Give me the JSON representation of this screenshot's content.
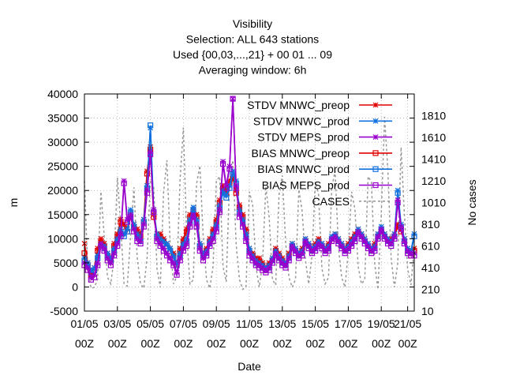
{
  "chart_data": {
    "type": "line",
    "title_lines": [
      "Visibility",
      "Selection: ALL    643 stations",
      "Used {00,03,...,21} + 00 01 ... 09",
      "Averaging window:  6h"
    ],
    "xlabel": "Date",
    "ylabel": "m",
    "y2label": "No cases",
    "ylim": [
      -5000,
      40000
    ],
    "y2lim": [
      10,
      2010
    ],
    "yticks": [
      -5000,
      0,
      5000,
      10000,
      15000,
      20000,
      25000,
      30000,
      35000,
      40000
    ],
    "y2ticks": [
      10,
      210,
      410,
      610,
      810,
      1010,
      1210,
      1410,
      1610,
      1810
    ],
    "xlim": [
      0,
      100
    ],
    "xticks": [
      {
        "pos": 0,
        "l1": "01/05",
        "l2": "00Z"
      },
      {
        "pos": 10,
        "l1": "03/05",
        "l2": "00Z"
      },
      {
        "pos": 20,
        "l1": "05/05",
        "l2": "00Z"
      },
      {
        "pos": 30,
        "l1": "07/05",
        "l2": "00Z"
      },
      {
        "pos": 40,
        "l1": "09/05",
        "l2": "00Z"
      },
      {
        "pos": 50,
        "l1": "11/05",
        "l2": "00Z"
      },
      {
        "pos": 60,
        "l1": "13/05",
        "l2": "00Z"
      },
      {
        "pos": 70,
        "l1": "15/05",
        "l2": "00Z"
      },
      {
        "pos": 80,
        "l1": "17/05",
        "l2": "00Z"
      },
      {
        "pos": 90,
        "l1": "19/05",
        "l2": "00Z"
      },
      {
        "pos": 98,
        "l1": "21/05",
        "l2": "00Z"
      }
    ],
    "legend_position": "top-right",
    "grid": true,
    "x": [
      0,
      1,
      2,
      3,
      4,
      5,
      6,
      7,
      8,
      9,
      10,
      11,
      12,
      13,
      14,
      15,
      16,
      17,
      18,
      19,
      20,
      21,
      22,
      23,
      24,
      25,
      26,
      27,
      28,
      29,
      30,
      31,
      32,
      33,
      34,
      35,
      36,
      37,
      38,
      39,
      40,
      41,
      42,
      43,
      44,
      45,
      46,
      47,
      48,
      49,
      50,
      51,
      52,
      53,
      54,
      55,
      56,
      57,
      58,
      59,
      60,
      61,
      62,
      63,
      64,
      65,
      66,
      67,
      68,
      69,
      70,
      71,
      72,
      73,
      74,
      75,
      76,
      77,
      78,
      79,
      80,
      81,
      82,
      83,
      84,
      85,
      86,
      87,
      88,
      89,
      90,
      91,
      92,
      93,
      94,
      95,
      96,
      97,
      98,
      99,
      100
    ],
    "series": [
      {
        "name": "STDV MNWC_preop",
        "color": "#e00000",
        "marker": "x",
        "values": [
          9000,
          5000,
          3000,
          4000,
          8000,
          10000,
          9000,
          7000,
          6000,
          9000,
          11000,
          14000,
          13000,
          12000,
          15000,
          13000,
          12000,
          11000,
          14000,
          24000,
          29000,
          15000,
          11000,
          11000,
          10000,
          9000,
          8000,
          7000,
          5000,
          8000,
          10000,
          12000,
          15000,
          16000,
          15000,
          9000,
          7000,
          8000,
          10000,
          12000,
          14000,
          18000,
          21000,
          20000,
          22000,
          23000,
          20000,
          17000,
          15000,
          12000,
          8000,
          7000,
          6000,
          6000,
          5000,
          4000,
          5000,
          6000,
          8000,
          7000,
          6000,
          5000,
          7000,
          9000,
          8000,
          7000,
          8000,
          10000,
          9000,
          8000,
          9000,
          10000,
          9000,
          8000,
          9000,
          10000,
          11000,
          10000,
          9000,
          8000,
          9000,
          10000,
          11000,
          12000,
          11000,
          10000,
          9000,
          8000,
          9000,
          11000,
          12000,
          11000,
          10000,
          10000,
          11000,
          13000,
          12000,
          10000,
          8000,
          7000,
          8000
        ]
      },
      {
        "name": "STDV MNWC_prod",
        "color": "#1070e0",
        "marker": "x",
        "values": [
          6000,
          5000,
          3500,
          4000,
          6500,
          9000,
          8500,
          7000,
          6000,
          8000,
          10000,
          12000,
          11000,
          12000,
          16000,
          13000,
          11000,
          10000,
          14000,
          21000,
          33000,
          16000,
          11000,
          10000,
          9500,
          9000,
          8000,
          6500,
          5000,
          7000,
          9000,
          10000,
          14000,
          16500,
          14000,
          9000,
          7000,
          7500,
          9500,
          11000,
          13000,
          17000,
          20000,
          19000,
          21000,
          24000,
          22000,
          16000,
          14000,
          11000,
          8000,
          6500,
          5500,
          5000,
          4500,
          4000,
          4500,
          6000,
          7500,
          6500,
          5500,
          5000,
          6500,
          9000,
          8000,
          7000,
          7500,
          10000,
          9000,
          8000,
          8500,
          9500,
          9000,
          8000,
          8500,
          10500,
          11000,
          10000,
          9000,
          8000,
          8500,
          9500,
          10500,
          12000,
          11000,
          10000,
          9000,
          8000,
          8500,
          11000,
          12500,
          11000,
          10000,
          9500,
          11000,
          20000,
          13000,
          10000,
          8000,
          7500,
          11000
        ]
      },
      {
        "name": "STDV MEPS_prod",
        "color": "#9900cc",
        "marker": "x",
        "values": [
          5000,
          4000,
          2000,
          2500,
          5000,
          9000,
          8000,
          6000,
          5000,
          7000,
          9000,
          11000,
          22000,
          14000,
          15000,
          12000,
          10000,
          9500,
          13000,
          20000,
          28000,
          16000,
          10000,
          9000,
          8000,
          7000,
          6000,
          5000,
          3000,
          6000,
          8000,
          9000,
          13000,
          15000,
          13000,
          8000,
          6000,
          7000,
          9000,
          10000,
          12000,
          16000,
          26000,
          21000,
          25000,
          39000,
          21000,
          15000,
          13000,
          10000,
          7000,
          6000,
          5000,
          4500,
          4000,
          3500,
          4000,
          5500,
          7000,
          6000,
          5000,
          4500,
          6000,
          8500,
          7500,
          6500,
          7000,
          9500,
          8500,
          7500,
          8000,
          9000,
          8500,
          7500,
          8000,
          10000,
          10500,
          9500,
          8500,
          7500,
          8000,
          9000,
          10000,
          11500,
          10500,
          9500,
          8500,
          7500,
          8000,
          10500,
          12000,
          10500,
          9500,
          9000,
          10500,
          18000,
          12500,
          9500,
          7500,
          7000,
          7000
        ]
      },
      {
        "name": "BIAS MNWC_preop",
        "color": "#e00000",
        "marker": "square",
        "values": [
          7000,
          4500,
          2500,
          3500,
          7500,
          9500,
          8500,
          6500,
          5500,
          8500,
          10500,
          13500,
          12500,
          11500,
          14500,
          12500,
          11500,
          10500,
          13500,
          23500,
          28500,
          14500,
          10500,
          10500,
          9500,
          8500,
          7500,
          6500,
          4500,
          7500,
          9500,
          11500,
          14500,
          15500,
          14500,
          8500,
          6500,
          7500,
          9500,
          11500,
          13500,
          17500,
          20500,
          19500,
          21500,
          22500,
          19500,
          16500,
          14500,
          11500,
          7500,
          6500,
          5500,
          5500,
          4500,
          3500,
          4500,
          5500,
          7500,
          6500,
          5500,
          4500,
          6500,
          8500,
          7500,
          6500,
          7500,
          9500,
          8500,
          7500,
          8500,
          9500,
          8500,
          7500,
          8500,
          9500,
          10500,
          9500,
          8500,
          7500,
          8500,
          9500,
          10500,
          11500,
          10500,
          9500,
          8500,
          7500,
          8500,
          10500,
          11500,
          10500,
          9500,
          9500,
          10500,
          12500,
          11500,
          9500,
          7500,
          6500,
          7500
        ]
      },
      {
        "name": "BIAS MNWC_prod",
        "color": "#1070e0",
        "marker": "square",
        "values": [
          5500,
          4500,
          3000,
          3500,
          6000,
          8500,
          8000,
          6500,
          5500,
          7500,
          9500,
          11500,
          10500,
          11500,
          15500,
          12500,
          10500,
          9500,
          13500,
          20500,
          33500,
          15500,
          10500,
          9500,
          9000,
          8500,
          7500,
          6000,
          4500,
          6500,
          8500,
          9500,
          13500,
          16000,
          13500,
          8500,
          6500,
          7000,
          9000,
          10500,
          12500,
          16500,
          19500,
          18500,
          20500,
          23500,
          21500,
          15500,
          13500,
          10500,
          7500,
          6000,
          5000,
          4500,
          4000,
          3500,
          4000,
          5500,
          7000,
          6000,
          5000,
          4500,
          6000,
          8500,
          7500,
          6500,
          7000,
          9500,
          8500,
          7500,
          8000,
          9000,
          8500,
          7500,
          8000,
          10000,
          10500,
          9500,
          8500,
          7500,
          8000,
          9000,
          10000,
          11500,
          10500,
          9500,
          8500,
          7500,
          8000,
          10500,
          12000,
          10500,
          9500,
          9000,
          10500,
          19500,
          12500,
          9500,
          7500,
          7000,
          10500
        ]
      },
      {
        "name": "BIAS MEPS_prod",
        "color": "#9900cc",
        "marker": "square",
        "values": [
          4500,
          3500,
          1500,
          2000,
          4500,
          8500,
          7500,
          5500,
          4500,
          6500,
          8500,
          10500,
          21500,
          13500,
          14500,
          11500,
          9500,
          9000,
          12500,
          19500,
          27500,
          15500,
          9500,
          8500,
          7500,
          6500,
          5500,
          4500,
          2500,
          5500,
          7500,
          8500,
          12500,
          14500,
          12500,
          7500,
          5500,
          6500,
          8500,
          9500,
          11500,
          15500,
          25500,
          20500,
          24500,
          39000,
          20500,
          14500,
          12500,
          9500,
          6500,
          5500,
          4500,
          4000,
          3500,
          3000,
          3500,
          5000,
          6500,
          5500,
          4500,
          4000,
          5500,
          8000,
          7000,
          6000,
          6500,
          9000,
          8000,
          7000,
          7500,
          8500,
          8000,
          7000,
          7500,
          9500,
          10000,
          9000,
          8000,
          7000,
          7500,
          8500,
          9500,
          11000,
          10000,
          9000,
          8000,
          7000,
          7500,
          10000,
          11500,
          10000,
          9000,
          8500,
          10000,
          17500,
          12000,
          9000,
          7000,
          6500,
          6500
        ]
      },
      {
        "name": "CASES",
        "color": "#999999",
        "marker": "none",
        "dash": true,
        "axis": "y2",
        "values": [
          1210,
          400,
          220,
          230,
          300,
          1110,
          700,
          320,
          260,
          500,
          1240,
          800,
          260,
          240,
          700,
          1150,
          500,
          260,
          220,
          500,
          1210,
          1150,
          400,
          230,
          1100,
          1400,
          620,
          260,
          330,
          1220,
          1700,
          700,
          260,
          300,
          1180,
          1350,
          700,
          300,
          220,
          420,
          1210,
          1250,
          420,
          280,
          1200,
          1400,
          620,
          300,
          210,
          230,
          1110,
          990,
          420,
          230,
          450,
          1160,
          880,
          300,
          250,
          1080,
          1260,
          640,
          320,
          230,
          300,
          1130,
          930,
          480,
          260,
          520,
          1200,
          1080,
          400,
          260,
          320,
          1150,
          1300,
          600,
          320,
          230,
          560,
          1110,
          950,
          420,
          260,
          300,
          1250,
          1200,
          450,
          210,
          900,
          1800,
          1300,
          500,
          230,
          450,
          1520,
          900,
          400,
          250,
          600
        ]
      }
    ]
  }
}
